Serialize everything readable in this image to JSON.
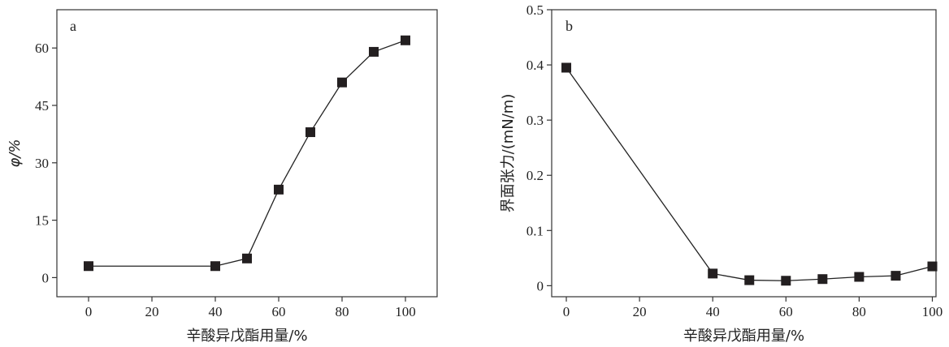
{
  "chart_data": [
    {
      "type": "line",
      "panel_label": "a",
      "xlabel": "辛酸异戊酯用量/%",
      "ylabel": "φ/%",
      "xlim": [
        -10,
        110
      ],
      "ylim": [
        -5,
        70
      ],
      "xticks": [
        0,
        20,
        40,
        60,
        80,
        100
      ],
      "yticks": [
        0,
        15,
        30,
        45,
        60
      ],
      "grid": false,
      "marker": "square",
      "series": [
        {
          "x": [
            0,
            40,
            50,
            60,
            70,
            80,
            90,
            100
          ],
          "y": [
            3,
            3,
            5,
            23,
            38,
            51,
            59,
            62
          ]
        }
      ]
    },
    {
      "type": "line",
      "panel_label": "b",
      "xlabel": "辛酸异戊酯用量/%",
      "ylabel": "界面张力/(mN/m)",
      "xlim": [
        -4,
        101
      ],
      "ylim": [
        -0.02,
        0.5
      ],
      "xticks": [
        0,
        20,
        40,
        60,
        80,
        100
      ],
      "yticks": [
        0,
        0.1,
        0.2,
        0.3,
        0.4,
        0.5
      ],
      "ytick_labels": [
        "0",
        "0.1",
        "0.2",
        "0.3",
        "0.4",
        "0.5"
      ],
      "grid": false,
      "marker": "square",
      "series": [
        {
          "x": [
            0,
            40,
            50,
            60,
            70,
            80,
            90,
            100
          ],
          "y": [
            0.395,
            0.022,
            0.01,
            0.009,
            0.012,
            0.016,
            0.018,
            0.035
          ]
        }
      ]
    }
  ]
}
